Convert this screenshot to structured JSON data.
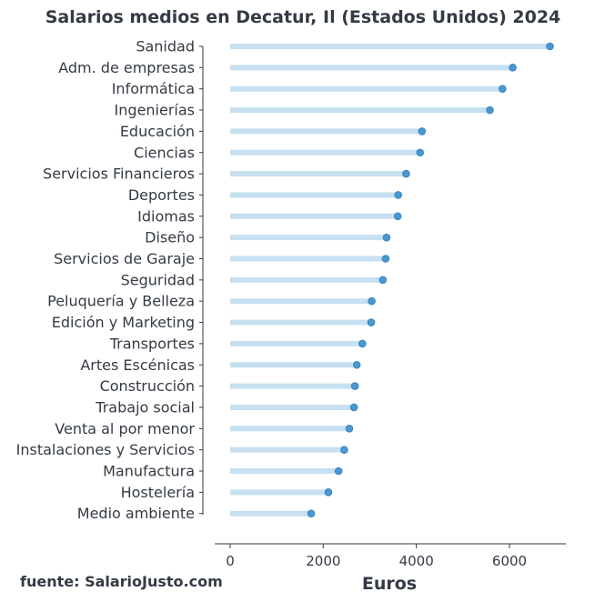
{
  "chart_data": {
    "type": "lollipop",
    "title": "Salarios medios en Decatur, Il (Estados Unidos) 2024",
    "xlabel": "Euros",
    "ylabel": "",
    "xlim": [
      -300,
      7200
    ],
    "xticks": [
      0,
      2000,
      4000,
      6000
    ],
    "grid": false,
    "source": "fuente: SalarioJusto.com",
    "colors": {
      "stem": "#c6e0f1",
      "dot": "#4a98cf",
      "dot_edge": "#3a86c0",
      "text": "#343a45",
      "axis": "#343a45"
    },
    "categories": [
      "Sanidad",
      "Adm. de empresas",
      "Informática",
      "Ingenierías",
      "Educación",
      "Ciencias",
      "Servicios Financieros",
      "Deportes",
      "Idiomas",
      "Diseño",
      "Servicios de Garaje",
      "Seguridad",
      "Peluquería y Belleza",
      "Edición y Marketing",
      "Transportes",
      "Artes Escénicas",
      "Construcción",
      "Trabajo social",
      "Venta al por menor",
      "Instalaciones y Servicios",
      "Manufactura",
      "Hostelería",
      "Medio ambiente"
    ],
    "values": [
      6870,
      6070,
      5850,
      5580,
      4120,
      4080,
      3780,
      3610,
      3600,
      3360,
      3340,
      3280,
      3040,
      3030,
      2840,
      2720,
      2680,
      2660,
      2560,
      2450,
      2330,
      2110,
      1740
    ]
  }
}
